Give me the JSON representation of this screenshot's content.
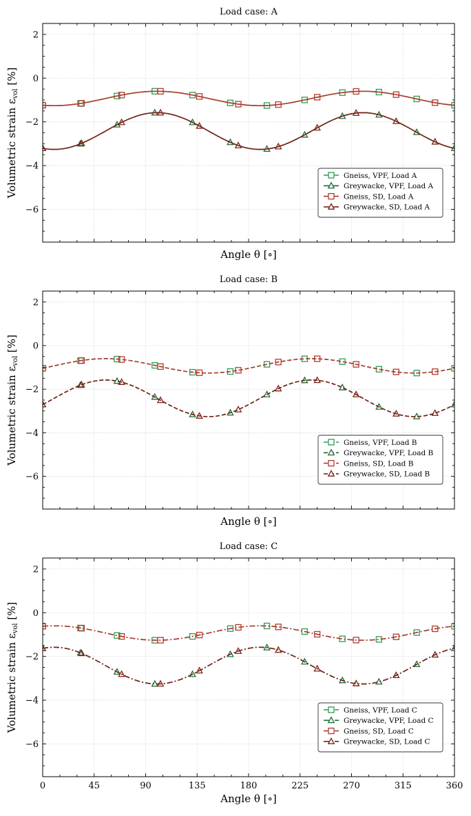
{
  "chart_data": [
    {
      "type": "line",
      "title": "Load case: A",
      "xlabel": "Angle θ [∘]",
      "ylabel": "Volumetric strain ε",
      "ylabel_sub": "vol",
      "ylabel_unit": "[%]",
      "xlim": [
        0,
        360
      ],
      "ylim": [
        -7.5,
        2.5
      ],
      "xticks": [
        0,
        45,
        90,
        135,
        180,
        225,
        270,
        315,
        360
      ],
      "yticks": [
        -6,
        -4,
        -2,
        0,
        2
      ],
      "show_xtick_labels": false,
      "linestyle": "solid",
      "legend_position": "lower-right",
      "series": [
        {
          "name": "Gneiss, VPF, Load A",
          "color": "#2e9a52",
          "marker": "square",
          "mean": -0.93,
          "amp": 0.33,
          "period": 180,
          "phase": 100,
          "marker_x": [
            0,
            33,
            65,
            98,
            131,
            164,
            196,
            229,
            262,
            294,
            327,
            360
          ]
        },
        {
          "name": "Greywacke, VPF, Load A",
          "color": "#1d6b38",
          "marker": "triangle",
          "mean": -2.42,
          "amp": 0.84,
          "period": 180,
          "phase": 100,
          "marker_x": [
            0,
            33,
            65,
            98,
            131,
            164,
            196,
            229,
            262,
            294,
            327,
            360
          ]
        },
        {
          "name": "Gneiss, SD, Load A",
          "color": "#b23a2e",
          "marker": "square",
          "mean": -0.93,
          "amp": 0.33,
          "period": 180,
          "phase": 100,
          "marker_x": [
            0,
            34,
            69,
            103,
            137,
            171,
            206,
            240,
            274,
            309,
            343
          ]
        },
        {
          "name": "Greywacke, SD, Load A",
          "color": "#7a2216",
          "marker": "triangle",
          "mean": -2.42,
          "amp": 0.84,
          "period": 180,
          "phase": 100,
          "marker_x": [
            0,
            34,
            69,
            103,
            137,
            171,
            206,
            240,
            274,
            309,
            343
          ]
        }
      ]
    },
    {
      "type": "line",
      "title": "Load case: B",
      "xlabel": "Angle θ [∘]",
      "ylabel": "Volumetric strain ε",
      "ylabel_sub": "vol",
      "ylabel_unit": "[%]",
      "xlim": [
        0,
        360
      ],
      "ylim": [
        -7.5,
        2.5
      ],
      "xticks": [
        0,
        45,
        90,
        135,
        180,
        225,
        270,
        315,
        360
      ],
      "yticks": [
        -6,
        -4,
        -2,
        0,
        2
      ],
      "show_xtick_labels": false,
      "linestyle": "dashed",
      "legend_position": "lower-right",
      "series": [
        {
          "name": "Gneiss, VPF, Load B",
          "color": "#2e9a52",
          "marker": "square",
          "mean": -0.93,
          "amp": 0.33,
          "period": 180,
          "phase": 55,
          "marker_x": [
            0,
            33,
            65,
            98,
            131,
            164,
            196,
            229,
            262,
            294,
            327,
            360
          ]
        },
        {
          "name": "Greywacke, VPF, Load B",
          "color": "#1d6b38",
          "marker": "triangle",
          "mean": -2.42,
          "amp": 0.84,
          "period": 180,
          "phase": 55,
          "marker_x": [
            0,
            33,
            65,
            98,
            131,
            164,
            196,
            229,
            262,
            294,
            327,
            360
          ]
        },
        {
          "name": "Gneiss, SD, Load B",
          "color": "#b23a2e",
          "marker": "square",
          "mean": -0.93,
          "amp": 0.33,
          "period": 180,
          "phase": 55,
          "marker_x": [
            0,
            34,
            69,
            103,
            137,
            171,
            206,
            240,
            274,
            309,
            343
          ]
        },
        {
          "name": "Greywacke, SD, Load B",
          "color": "#7a2216",
          "marker": "triangle",
          "mean": -2.42,
          "amp": 0.84,
          "period": 180,
          "phase": 55,
          "marker_x": [
            0,
            34,
            69,
            103,
            137,
            171,
            206,
            240,
            274,
            309,
            343
          ]
        }
      ]
    },
    {
      "type": "line",
      "title": "Load case: C",
      "xlabel": "Angle θ [∘]",
      "ylabel": "Volumetric strain ε",
      "ylabel_sub": "vol",
      "ylabel_unit": "[%]",
      "xlim": [
        0,
        360
      ],
      "ylim": [
        -7.5,
        2.5
      ],
      "xticks": [
        0,
        45,
        90,
        135,
        180,
        225,
        270,
        315,
        360
      ],
      "yticks": [
        -6,
        -4,
        -2,
        0,
        2
      ],
      "show_xtick_labels": true,
      "linestyle": "dashdot",
      "legend_position": "lower-right",
      "series": [
        {
          "name": "Gneiss, VPF, Load C",
          "color": "#2e9a52",
          "marker": "square",
          "mean": -0.93,
          "amp": 0.33,
          "period": 180,
          "phase": 10,
          "marker_x": [
            0,
            33,
            65,
            98,
            131,
            164,
            196,
            229,
            262,
            294,
            327,
            360
          ]
        },
        {
          "name": "Greywacke, VPF, Load C",
          "color": "#1d6b38",
          "marker": "triangle",
          "mean": -2.42,
          "amp": 0.84,
          "period": 180,
          "phase": 10,
          "marker_x": [
            0,
            33,
            65,
            98,
            131,
            164,
            196,
            229,
            262,
            294,
            327,
            360
          ]
        },
        {
          "name": "Gneiss, SD, Load C",
          "color": "#b23a2e",
          "marker": "square",
          "mean": -0.93,
          "amp": 0.33,
          "period": 180,
          "phase": 10,
          "marker_x": [
            0,
            34,
            69,
            103,
            137,
            171,
            206,
            240,
            274,
            309,
            343
          ]
        },
        {
          "name": "Greywacke, SD, Load C",
          "color": "#7a2216",
          "marker": "triangle",
          "mean": -2.42,
          "amp": 0.84,
          "period": 180,
          "phase": 10,
          "marker_x": [
            0,
            34,
            69,
            103,
            137,
            171,
            206,
            240,
            274,
            309,
            343
          ]
        }
      ]
    }
  ]
}
